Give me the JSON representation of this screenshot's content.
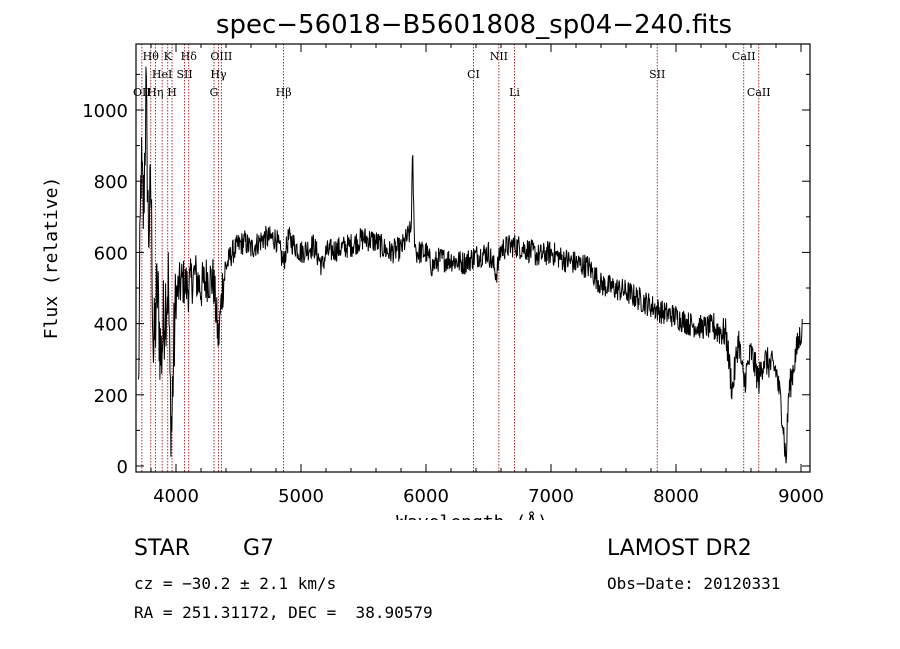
{
  "chart_data": {
    "type": "line",
    "title": "spec−56018−B5601808_sp04−240.fits",
    "xlabel": "Wavelength (Å)",
    "ylabel": "Flux (relative)",
    "xlim": [
      3700,
      9100
    ],
    "ylim": [
      -20,
      1180
    ],
    "xticks": [
      4000,
      5000,
      6000,
      7000,
      8000,
      9000
    ],
    "xtick_labels": [
      "4000",
      "5000",
      "6000",
      "7000",
      "8000",
      "9000"
    ],
    "yticks": [
      0,
      200,
      400,
      600,
      800,
      1000
    ],
    "ytick_labels": [
      "0",
      "200",
      "400",
      "600",
      "800",
      "1000"
    ],
    "series_color": "#000000",
    "line_color": "#8b0000",
    "anchors": [
      [
        3700,
        200
      ],
      [
        3720,
        850
      ],
      [
        3740,
        700
      ],
      [
        3760,
        1050
      ],
      [
        3780,
        650
      ],
      [
        3800,
        780
      ],
      [
        3820,
        300
      ],
      [
        3850,
        500
      ],
      [
        3880,
        300
      ],
      [
        3910,
        450
      ],
      [
        3940,
        520
      ],
      [
        3950,
        250
      ],
      [
        3965,
        100
      ],
      [
        3980,
        300
      ],
      [
        4000,
        480
      ],
      [
        4050,
        520
      ],
      [
        4100,
        500
      ],
      [
        4150,
        540
      ],
      [
        4200,
        500
      ],
      [
        4250,
        530
      ],
      [
        4300,
        520
      ],
      [
        4340,
        350
      ],
      [
        4370,
        500
      ],
      [
        4400,
        560
      ],
      [
        4450,
        600
      ],
      [
        4500,
        620
      ],
      [
        4550,
        630
      ],
      [
        4600,
        610
      ],
      [
        4700,
        640
      ],
      [
        4800,
        640
      ],
      [
        4860,
        570
      ],
      [
        4900,
        640
      ],
      [
        5000,
        600
      ],
      [
        5100,
        620
      ],
      [
        5170,
        560
      ],
      [
        5200,
        600
      ],
      [
        5300,
        610
      ],
      [
        5400,
        620
      ],
      [
        5500,
        640
      ],
      [
        5600,
        630
      ],
      [
        5700,
        600
      ],
      [
        5800,
        610
      ],
      [
        5880,
        660
      ],
      [
        5893,
        870
      ],
      [
        5905,
        660
      ],
      [
        5920,
        600
      ],
      [
        6000,
        600
      ],
      [
        6050,
        560
      ],
      [
        6100,
        580
      ],
      [
        6200,
        580
      ],
      [
        6300,
        570
      ],
      [
        6400,
        590
      ],
      [
        6500,
        600
      ],
      [
        6563,
        540
      ],
      [
        6600,
        610
      ],
      [
        6700,
        620
      ],
      [
        6800,
        610
      ],
      [
        6900,
        590
      ],
      [
        7000,
        600
      ],
      [
        7100,
        580
      ],
      [
        7200,
        570
      ],
      [
        7300,
        560
      ],
      [
        7400,
        510
      ],
      [
        7500,
        500
      ],
      [
        7600,
        490
      ],
      [
        7700,
        470
      ],
      [
        7800,
        450
      ],
      [
        7900,
        430
      ],
      [
        8000,
        420
      ],
      [
        8100,
        400
      ],
      [
        8200,
        390
      ],
      [
        8300,
        390
      ],
      [
        8400,
        370
      ],
      [
        8450,
        210
      ],
      [
        8500,
        360
      ],
      [
        8542,
        230
      ],
      [
        8600,
        320
      ],
      [
        8662,
        240
      ],
      [
        8700,
        300
      ],
      [
        8800,
        270
      ],
      [
        8850,
        150
      ],
      [
        8880,
        10
      ],
      [
        8900,
        200
      ],
      [
        8950,
        300
      ],
      [
        9000,
        380
      ],
      [
        9010,
        380
      ]
    ],
    "lines": [
      {
        "label": "OII",
        "x": 3727,
        "row": 2
      },
      {
        "label": "Hθ",
        "x": 3798,
        "row": 0
      },
      {
        "label": "Hη",
        "x": 3835,
        "row": 2
      },
      {
        "label": "HeI",
        "x": 3889,
        "row": 1
      },
      {
        "label": "K",
        "x": 3934,
        "row": 0
      },
      {
        "label": "H",
        "x": 3968,
        "row": 2
      },
      {
        "label": "SII",
        "x": 4069,
        "row": 1
      },
      {
        "label": "Hδ",
        "x": 4102,
        "row": 0
      },
      {
        "label": "G",
        "x": 4304,
        "row": 2
      },
      {
        "label": "Hγ",
        "x": 4340,
        "row": 1
      },
      {
        "label": "OIII",
        "x": 4363,
        "row": 0
      },
      {
        "label": "Hβ",
        "x": 4861,
        "row": 2
      },
      {
        "label": "CI",
        "x": 6380,
        "row": 1
      },
      {
        "label": "NII",
        "x": 6583,
        "row": 0
      },
      {
        "label": "Li",
        "x": 6708,
        "row": 2
      },
      {
        "label": "SII",
        "x": 7850,
        "row": 1
      },
      {
        "label": "CaII",
        "x": 8542,
        "row": 0
      },
      {
        "label": "CaII",
        "x": 8662,
        "row": 2
      }
    ]
  },
  "info": {
    "class": "STAR",
    "subclass": "G7",
    "survey": "LAMOST DR2",
    "cz": "cz = −30.2 ± 2.1 km/s",
    "obs_date": "Obs−Date: 20120331",
    "coords": "RA = 251.31172, DEC =  38.90579"
  }
}
